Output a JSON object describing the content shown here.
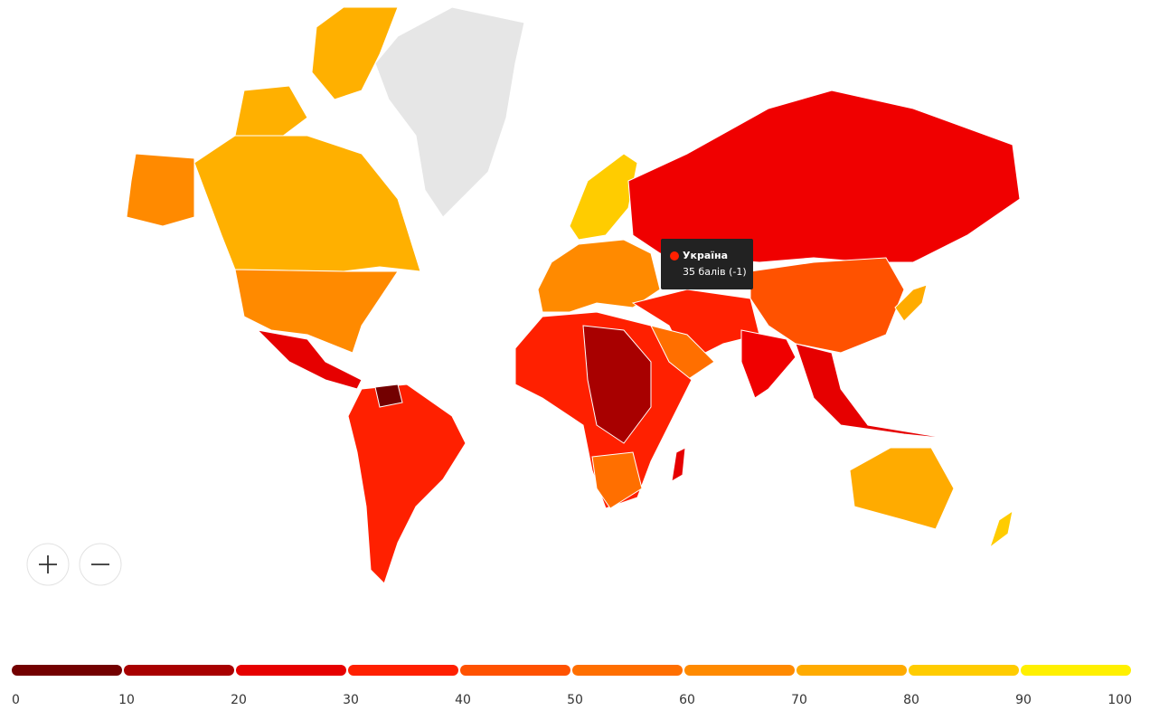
{
  "tooltip": {
    "country": "Україна",
    "detail": "35 балів (-1)"
  },
  "legend": {
    "ticks": [
      0,
      10,
      20,
      30,
      40,
      50,
      60,
      70,
      80,
      90,
      100
    ],
    "colors": [
      "#730000",
      "#a80000",
      "#e60000",
      "#ff2000",
      "#ff5200",
      "#ff6f00",
      "#ff8a00",
      "#ffab00",
      "#ffcc00",
      "#fff000"
    ]
  }
}
